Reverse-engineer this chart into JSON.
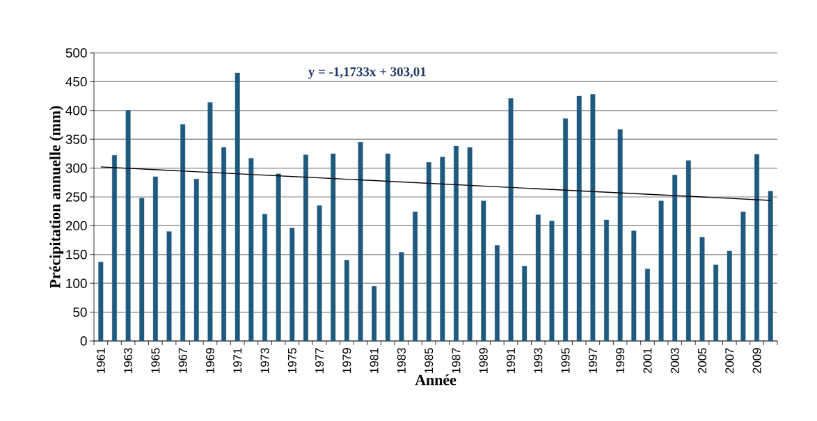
{
  "chart_data": {
    "type": "bar",
    "xlabel": "Année",
    "ylabel": "Précipitation  annuelle  (mm)",
    "annotations": [
      "y = -1,1733x + 303,01"
    ],
    "categories": [
      "1961",
      null,
      "1963",
      null,
      "1965",
      null,
      "1967",
      null,
      "1969",
      null,
      "1971",
      null,
      "1973",
      null,
      "1975",
      null,
      "1977",
      null,
      "1979",
      null,
      "1981",
      null,
      "1983",
      null,
      "1985",
      null,
      "1987",
      null,
      "1989",
      null,
      "1991",
      null,
      "1993",
      null,
      "1995",
      null,
      "1997",
      null,
      "1999",
      null,
      "2001",
      null,
      "2003",
      null,
      "2005",
      null,
      "2007",
      null,
      "2009",
      null
    ],
    "series": [
      {
        "color": "#1f5a7e",
        "values": [
          137,
          322,
          400,
          248,
          285,
          190,
          376,
          281,
          414,
          336,
          465,
          317,
          220,
          290,
          196,
          323,
          235,
          325,
          140,
          345,
          95,
          325,
          154,
          224,
          310,
          319,
          338,
          336,
          243,
          166,
          421,
          130,
          219,
          208,
          386,
          425,
          428,
          210,
          367,
          191,
          125,
          243,
          288,
          313,
          180,
          132,
          156,
          224,
          324,
          260
        ]
      },
      {
        "type": "line",
        "color": "#000000",
        "values": [
          302,
          null,
          null,
          null,
          null,
          null,
          null,
          null,
          null,
          null,
          null,
          null,
          null,
          null,
          null,
          null,
          null,
          null,
          null,
          null,
          null,
          null,
          null,
          null,
          null,
          null,
          null,
          null,
          null,
          null,
          null,
          null,
          null,
          null,
          null,
          null,
          null,
          null,
          null,
          null,
          null,
          null,
          null,
          null,
          null,
          null,
          null,
          null,
          null,
          244
        ]
      }
    ],
    "ylim": [
      0,
      500
    ],
    "yticks": [
      0,
      50,
      100,
      150,
      200,
      250,
      300,
      350,
      400,
      450,
      500
    ],
    "grid": "y"
  }
}
